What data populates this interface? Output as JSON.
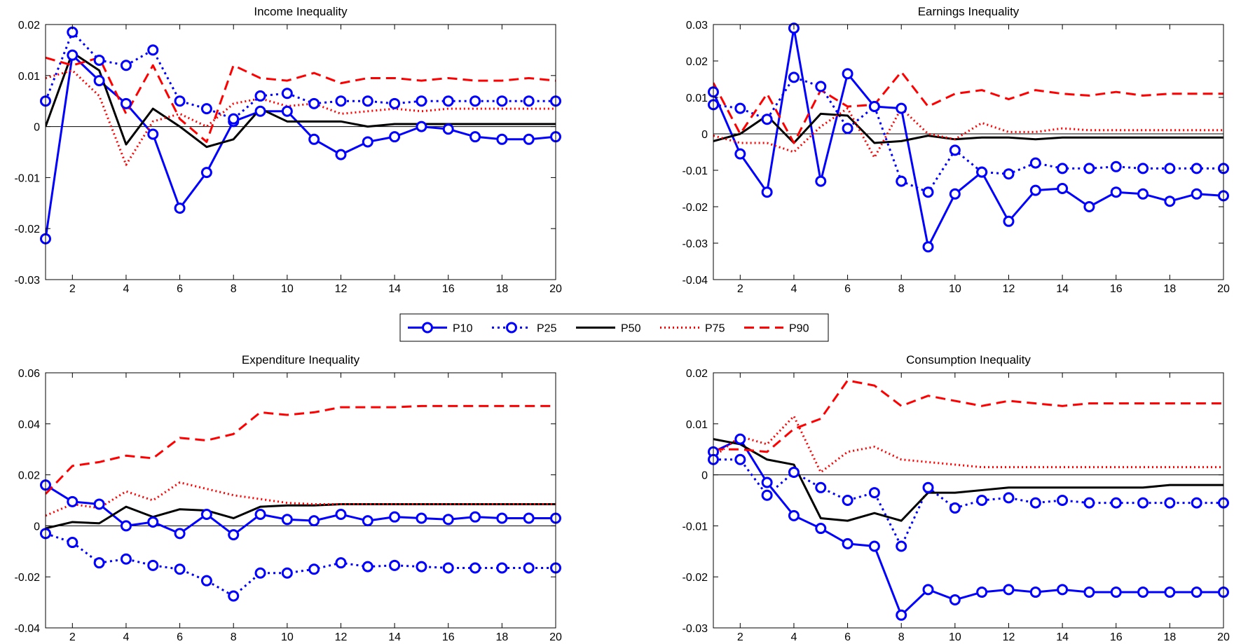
{
  "chart_data": [
    {
      "type": "line",
      "title": "Income Inequality",
      "xlabel": "",
      "ylabel": "",
      "x": [
        1,
        2,
        3,
        4,
        5,
        6,
        7,
        8,
        9,
        10,
        11,
        12,
        13,
        14,
        15,
        16,
        17,
        18,
        19,
        20
      ],
      "xlim": [
        1,
        20
      ],
      "ylim": [
        -0.03,
        0.02
      ],
      "xticks": [
        2,
        4,
        6,
        8,
        10,
        12,
        14,
        16,
        18,
        20
      ],
      "yticks": [
        -0.03,
        -0.02,
        -0.01,
        0,
        0.01,
        0.02
      ],
      "ytick_labels": [
        "-0.03",
        "-0.02",
        "-0.01",
        "0",
        "0.01",
        "0.02"
      ],
      "series": [
        {
          "name": "P10",
          "values": [
            -0.022,
            0.014,
            0.009,
            0.0045,
            -0.0015,
            -0.016,
            -0.009,
            0.001,
            0.003,
            0.003,
            -0.0025,
            -0.0055,
            -0.003,
            -0.002,
            0,
            -0.0005,
            -0.002,
            -0.0025,
            -0.0025,
            -0.002
          ]
        },
        {
          "name": "P25",
          "values": [
            0.005,
            0.0185,
            0.013,
            0.012,
            0.015,
            0.005,
            0.0035,
            0.0015,
            0.006,
            0.0065,
            0.0045,
            0.005,
            0.005,
            0.0045,
            0.005,
            0.005,
            0.005,
            0.005,
            0.005,
            0.005
          ]
        },
        {
          "name": "P50",
          "values": [
            0,
            0.0145,
            0.011,
            -0.0035,
            0.0035,
            0,
            -0.004,
            -0.0025,
            0.0035,
            0.001,
            0.001,
            0.001,
            0,
            0.0005,
            0.0005,
            0.0005,
            0.0005,
            0.0005,
            0.0005,
            0.0005
          ]
        },
        {
          "name": "P75",
          "values": [
            0.0095,
            0.011,
            0.006,
            -0.0075,
            0.001,
            0.0025,
            0,
            0.0045,
            0.0055,
            0.004,
            0.0045,
            0.0025,
            0.003,
            0.0035,
            0.003,
            0.0035,
            0.0035,
            0.0035,
            0.0035,
            0.0035
          ]
        },
        {
          "name": "P90",
          "values": [
            0.0135,
            0.012,
            0.0135,
            0.0025,
            0.012,
            0.0015,
            -0.003,
            0.012,
            0.0095,
            0.009,
            0.0105,
            0.0085,
            0.0095,
            0.0095,
            0.009,
            0.0095,
            0.009,
            0.009,
            0.0095,
            0.009
          ]
        }
      ]
    },
    {
      "type": "line",
      "title": "Earnings Inequality",
      "xlabel": "",
      "ylabel": "",
      "x": [
        1,
        2,
        3,
        4,
        5,
        6,
        7,
        8,
        9,
        10,
        11,
        12,
        13,
        14,
        15,
        16,
        17,
        18,
        19,
        20
      ],
      "xlim": [
        1,
        20
      ],
      "ylim": [
        -0.04,
        0.03
      ],
      "xticks": [
        2,
        4,
        6,
        8,
        10,
        12,
        14,
        16,
        18,
        20
      ],
      "yticks": [
        -0.04,
        -0.03,
        -0.02,
        -0.01,
        0,
        0.01,
        0.02,
        0.03
      ],
      "ytick_labels": [
        "-0.04",
        "-0.03",
        "-0.02",
        "-0.01",
        "0",
        "0.01",
        "0.02",
        "0.03"
      ],
      "series": [
        {
          "name": "P10",
          "values": [
            0.0115,
            -0.0055,
            -0.016,
            0.029,
            -0.013,
            0.0165,
            0.0075,
            0.007,
            -0.031,
            -0.0165,
            -0.0105,
            -0.024,
            -0.0155,
            -0.015,
            -0.02,
            -0.016,
            -0.0165,
            -0.0185,
            -0.0165,
            -0.017
          ]
        },
        {
          "name": "P25",
          "values": [
            0.008,
            0.007,
            0.004,
            0.0155,
            0.013,
            0.0015,
            0.0075,
            -0.013,
            -0.016,
            -0.0045,
            -0.0105,
            -0.011,
            -0.008,
            -0.0095,
            -0.0095,
            -0.009,
            -0.0095,
            -0.0095,
            -0.0095,
            -0.0095
          ]
        },
        {
          "name": "P50",
          "values": [
            -0.002,
            0,
            0.005,
            -0.0025,
            0.0055,
            0.005,
            -0.0025,
            -0.002,
            -0.0005,
            -0.0015,
            -0.001,
            -0.001,
            -0.0015,
            -0.001,
            -0.001,
            -0.001,
            -0.001,
            -0.001,
            -0.001,
            -0.001
          ]
        },
        {
          "name": "P75",
          "values": [
            -0.0005,
            -0.0025,
            -0.0025,
            -0.005,
            0.002,
            0.007,
            -0.0065,
            0.007,
            0,
            -0.0015,
            0.003,
            0.0005,
            0.0005,
            0.0015,
            0.001,
            0.001,
            0.001,
            0.001,
            0.001,
            0.001
          ]
        },
        {
          "name": "P90",
          "values": [
            0.014,
            0,
            0.011,
            -0.0025,
            0.012,
            0.0075,
            0.008,
            0.017,
            0.0075,
            0.011,
            0.012,
            0.0095,
            0.012,
            0.011,
            0.0105,
            0.0115,
            0.0105,
            0.011,
            0.011,
            0.011
          ]
        }
      ]
    },
    {
      "type": "line",
      "title": "Expenditure Inequality",
      "xlabel": "",
      "ylabel": "",
      "x": [
        1,
        2,
        3,
        4,
        5,
        6,
        7,
        8,
        9,
        10,
        11,
        12,
        13,
        14,
        15,
        16,
        17,
        18,
        19,
        20
      ],
      "xlim": [
        1,
        20
      ],
      "ylim": [
        -0.04,
        0.06
      ],
      "xticks": [
        2,
        4,
        6,
        8,
        10,
        12,
        14,
        16,
        18,
        20
      ],
      "yticks": [
        -0.04,
        -0.02,
        0,
        0.02,
        0.04,
        0.06
      ],
      "ytick_labels": [
        "-0.04",
        "-0.02",
        "0",
        "0.02",
        "0.04",
        "0.06"
      ],
      "series": [
        {
          "name": "P10",
          "values": [
            0.016,
            0.0095,
            0.0085,
            0,
            0.0015,
            -0.003,
            0.0045,
            -0.0035,
            0.0045,
            0.0025,
            0.002,
            0.0045,
            0.002,
            0.0035,
            0.003,
            0.0025,
            0.0035,
            0.003,
            0.003,
            0.003
          ]
        },
        {
          "name": "P25",
          "values": [
            -0.003,
            -0.0065,
            -0.0145,
            -0.013,
            -0.0155,
            -0.017,
            -0.0215,
            -0.0275,
            -0.0185,
            -0.0185,
            -0.017,
            -0.0145,
            -0.016,
            -0.0155,
            -0.016,
            -0.0165,
            -0.0165,
            -0.0165,
            -0.0165,
            -0.0165
          ]
        },
        {
          "name": "P50",
          "values": [
            -0.001,
            0.0015,
            0.001,
            0.0075,
            0.0035,
            0.0065,
            0.006,
            0.003,
            0.0075,
            0.008,
            0.008,
            0.0085,
            0.0085,
            0.0085,
            0.0085,
            0.0085,
            0.0085,
            0.0085,
            0.0085,
            0.0085
          ]
        },
        {
          "name": "P75",
          "values": [
            0.004,
            0.0085,
            0.007,
            0.0135,
            0.01,
            0.017,
            0.0145,
            0.012,
            0.0105,
            0.009,
            0.0085,
            0.0085,
            0.0085,
            0.0085,
            0.0085,
            0.0085,
            0.0085,
            0.0085,
            0.0085,
            0.0085
          ]
        },
        {
          "name": "P90",
          "values": [
            0.0125,
            0.0235,
            0.025,
            0.0275,
            0.0265,
            0.0345,
            0.0335,
            0.036,
            0.0445,
            0.0435,
            0.0445,
            0.0465,
            0.0465,
            0.0465,
            0.047,
            0.047,
            0.047,
            0.047,
            0.047,
            0.047
          ]
        }
      ]
    },
    {
      "type": "line",
      "title": "Consumption Inequality",
      "xlabel": "",
      "ylabel": "",
      "x": [
        1,
        2,
        3,
        4,
        5,
        6,
        7,
        8,
        9,
        10,
        11,
        12,
        13,
        14,
        15,
        16,
        17,
        18,
        19,
        20
      ],
      "xlim": [
        1,
        20
      ],
      "ylim": [
        -0.03,
        0.02
      ],
      "xticks": [
        2,
        4,
        6,
        8,
        10,
        12,
        14,
        16,
        18,
        20
      ],
      "yticks": [
        -0.03,
        -0.02,
        -0.01,
        0,
        0.01,
        0.02
      ],
      "ytick_labels": [
        "-0.03",
        "-0.02",
        "-0.01",
        "0",
        "0.01",
        "0.02"
      ],
      "series": [
        {
          "name": "P10",
          "values": [
            0.0045,
            0.007,
            -0.0015,
            -0.008,
            -0.0105,
            -0.0135,
            -0.014,
            -0.0275,
            -0.0225,
            -0.0245,
            -0.023,
            -0.0225,
            -0.023,
            -0.0225,
            -0.023,
            -0.023,
            -0.023,
            -0.023,
            -0.023,
            -0.023
          ]
        },
        {
          "name": "P25",
          "values": [
            0.003,
            0.003,
            -0.004,
            0.0005,
            -0.0025,
            -0.005,
            -0.0035,
            -0.014,
            -0.0025,
            -0.0065,
            -0.005,
            -0.0045,
            -0.0055,
            -0.005,
            -0.0055,
            -0.0055,
            -0.0055,
            -0.0055,
            -0.0055,
            -0.0055
          ]
        },
        {
          "name": "P50",
          "values": [
            0.007,
            0.006,
            0.003,
            0.002,
            -0.0085,
            -0.009,
            -0.0075,
            -0.009,
            -0.0035,
            -0.0035,
            -0.003,
            -0.0025,
            -0.0025,
            -0.0025,
            -0.0025,
            -0.0025,
            -0.0025,
            -0.002,
            -0.002,
            -0.002
          ]
        },
        {
          "name": "P75",
          "values": [
            0.0035,
            0.0075,
            0.006,
            0.0115,
            0.0005,
            0.0045,
            0.0055,
            0.003,
            0.0025,
            0.002,
            0.0015,
            0.0015,
            0.0015,
            0.0015,
            0.0015,
            0.0015,
            0.0015,
            0.0015,
            0.0015,
            0.0015
          ]
        },
        {
          "name": "P90",
          "values": [
            0.005,
            0.005,
            0.0045,
            0.009,
            0.011,
            0.0185,
            0.0175,
            0.0135,
            0.0155,
            0.0145,
            0.0135,
            0.0145,
            0.014,
            0.0135,
            0.014,
            0.014,
            0.014,
            0.014,
            0.014,
            0.014
          ]
        }
      ]
    }
  ],
  "legend": {
    "placement": "center",
    "items": [
      {
        "label": "P10",
        "color": "#0000ff",
        "line": "solid",
        "marker": "circle"
      },
      {
        "label": "P25",
        "color": "#0000ff",
        "line": "dotted",
        "marker": "circle"
      },
      {
        "label": "P50",
        "color": "#000000",
        "line": "solid",
        "marker": "none"
      },
      {
        "label": "P75",
        "color": "#ff0000",
        "line": "dotted",
        "marker": "none"
      },
      {
        "label": "P90",
        "color": "#ff0000",
        "line": "dashed",
        "marker": "none"
      }
    ]
  },
  "colors": {
    "blue": "#0000ff",
    "black": "#000000",
    "red": "#ff0000",
    "zero_line": "#000000"
  }
}
